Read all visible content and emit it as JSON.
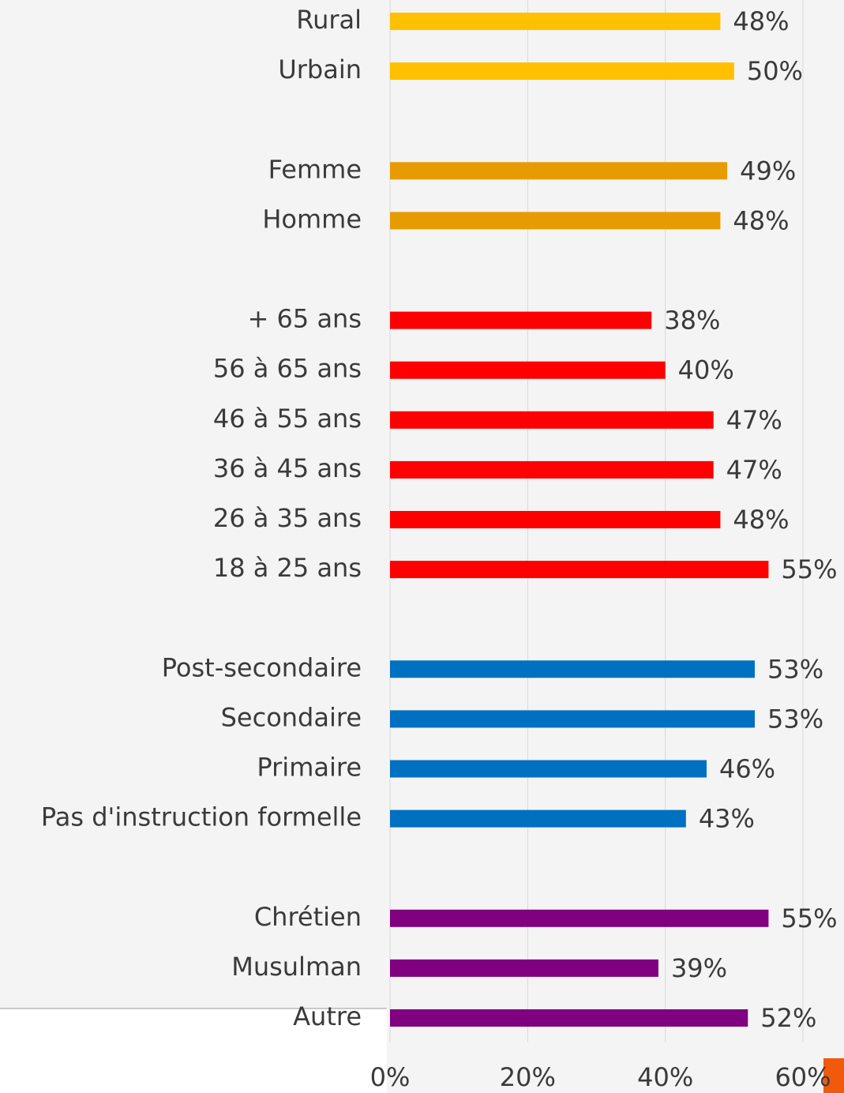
{
  "chart_data": {
    "type": "bar",
    "groups": [
      {
        "color": "#ffc000",
        "categories": [
          "Rural",
          "Urbain"
        ],
        "values": [
          48,
          50
        ],
        "value_labels": [
          "48%",
          "50%"
        ]
      },
      {
        "color": "#e69c00",
        "categories": [
          "Femme",
          "Homme"
        ],
        "values": [
          49,
          48
        ],
        "value_labels": [
          "49%",
          "48%"
        ]
      },
      {
        "color": "#ff0000",
        "categories": [
          "+ 65 ans",
          "56 à 65 ans",
          "46 à 55 ans",
          "36 à 45 ans",
          "26 à 35 ans",
          "18 à 25 ans"
        ],
        "values": [
          38,
          40,
          47,
          47,
          48,
          55
        ],
        "value_labels": [
          "38%",
          "40%",
          "47%",
          "47%",
          "48%",
          "55%"
        ]
      },
      {
        "color": "#0070c0",
        "categories": [
          "Post-secondaire",
          "Secondaire",
          "Primaire",
          "Pas d'instruction formelle"
        ],
        "values": [
          53,
          53,
          46,
          43
        ],
        "value_labels": [
          "53%",
          "53%",
          "46%",
          "43%"
        ]
      },
      {
        "color": "#800080",
        "categories": [
          "Chrétien",
          "Musulman",
          "Autre"
        ],
        "values": [
          55,
          39,
          52
        ],
        "value_labels": [
          "55%",
          "39%",
          "52%"
        ]
      }
    ],
    "xlim": [
      0,
      60
    ],
    "xticks": [
      {
        "value": 0,
        "label": "0%"
      },
      {
        "value": 20,
        "label": "20%"
      },
      {
        "value": 40,
        "label": "40%"
      },
      {
        "value": 60,
        "label": "60%"
      }
    ],
    "grid": true
  }
}
